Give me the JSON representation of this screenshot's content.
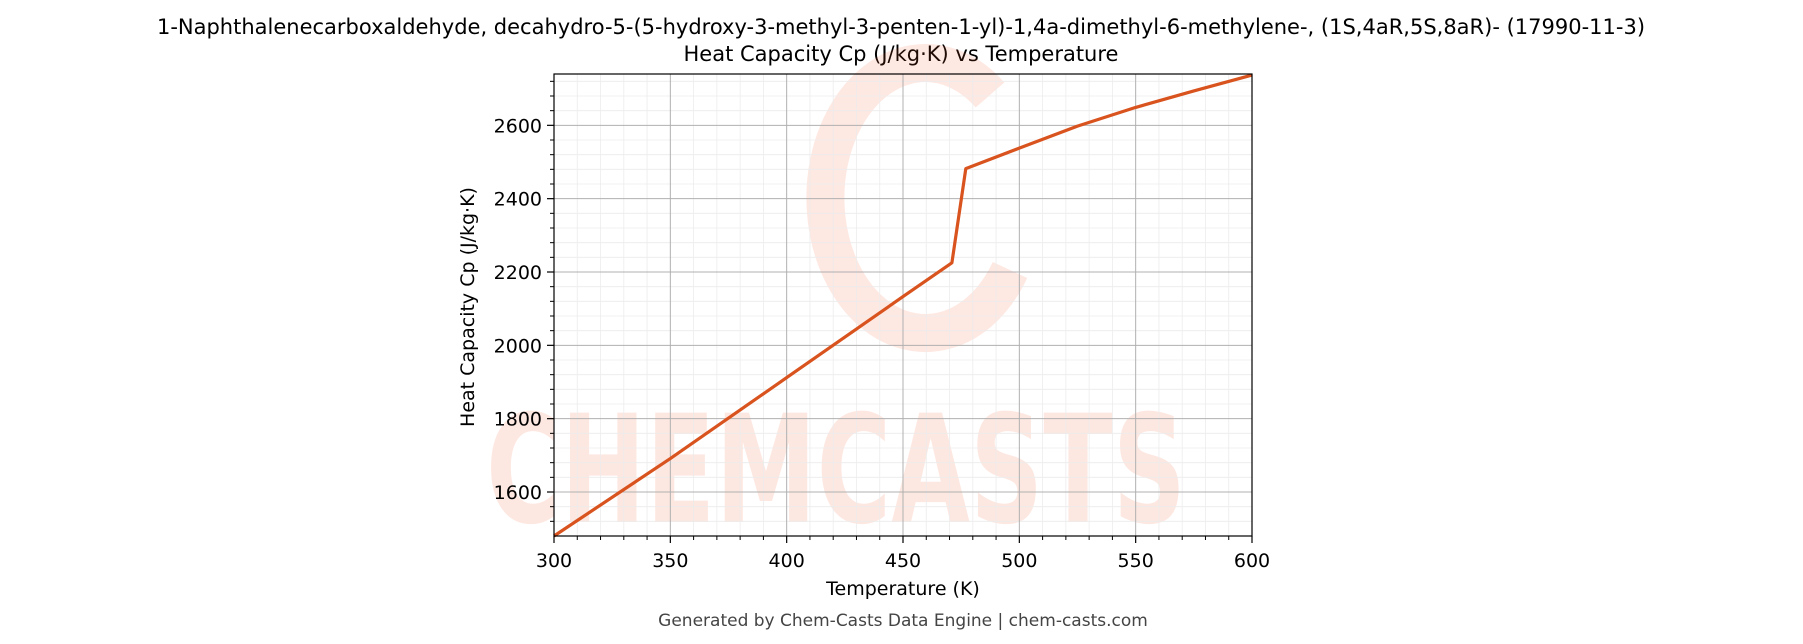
{
  "chart_data": {
    "type": "line",
    "title": "1-Naphthalenecarboxaldehyde, decahydro-5-(5-hydroxy-3-methyl-3-penten-1-yl)-1,4a-dimethyl-6-methylene-, (1S,4aR,5S,8aR)- (17990-11-3)",
    "subtitle": "Heat Capacity Cp (J/kg·K) vs Temperature",
    "xlabel": "Temperature (K)",
    "ylabel": "Heat Capacity Cp (J/kg·K)",
    "xlim": [
      300,
      600
    ],
    "ylim": [
      1480,
      2740
    ],
    "x_ticks": [
      300,
      350,
      400,
      450,
      500,
      550,
      600
    ],
    "y_ticks": [
      1600,
      1800,
      2000,
      2200,
      2400,
      2600
    ],
    "grid": true,
    "color": "#d9531e",
    "series": [
      {
        "x": [
          300,
          350,
          400,
          450,
          471,
          477,
          500,
          525,
          550,
          575,
          600
        ],
        "values": [
          1480,
          1691,
          1912,
          2133,
          2225,
          2482,
          2538,
          2598,
          2649,
          2694,
          2737
        ]
      }
    ]
  },
  "watermark": "CHEMCASTS",
  "footer": "Generated by Chem-Casts Data Engine | chem-casts.com"
}
